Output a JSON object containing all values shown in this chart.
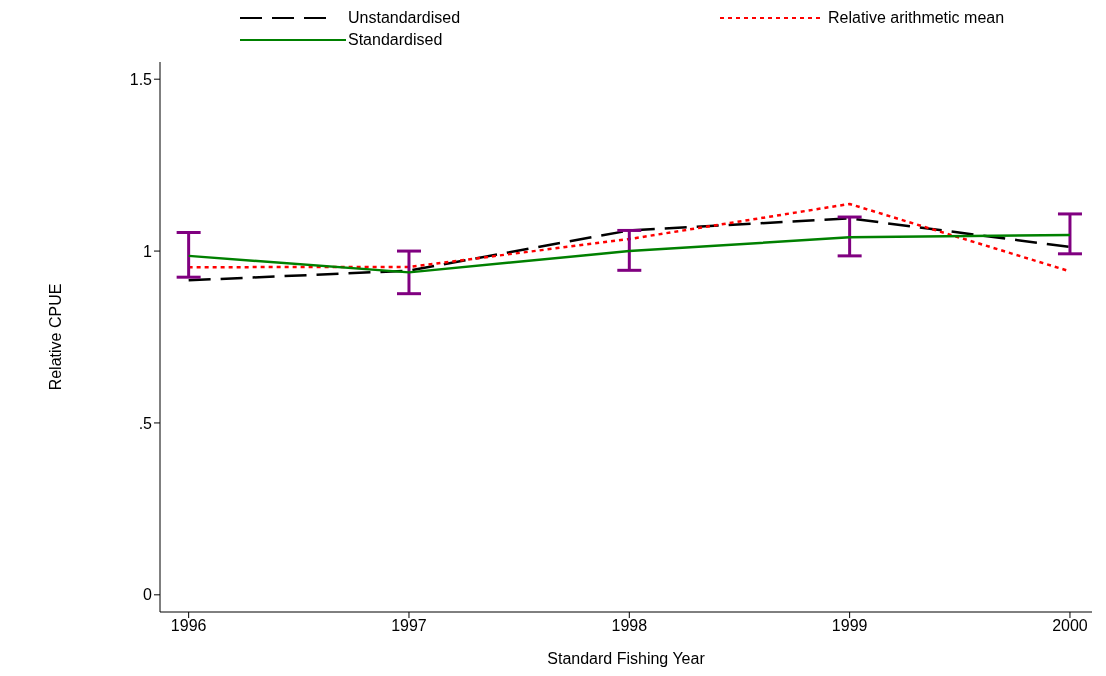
{
  "chart_data": {
    "type": "line",
    "xlabel": "Standard Fishing Year",
    "ylabel": "Relative CPUE",
    "x": [
      1996,
      1997,
      1998,
      1999,
      2000
    ],
    "xlim": [
      1995.87,
      2000.1
    ],
    "xticks": [
      1996,
      1997,
      1998,
      1999,
      2000
    ],
    "ylim": [
      -0.05,
      1.55
    ],
    "yticks": [
      0,
      {
        "value": 0.5,
        "label": ".5"
      },
      1,
      1.5
    ],
    "legend": "top",
    "grid": false,
    "series": [
      {
        "name": "Unstandardised",
        "color": "#000000",
        "line_style": "dashed",
        "values": [
          0.915,
          0.943,
          1.06,
          1.095,
          1.012
        ]
      },
      {
        "name": "Relative arithmetic mean",
        "color": "#ff0000",
        "line_style": "dotted",
        "values": [
          0.953,
          0.954,
          1.035,
          1.137,
          0.941
        ]
      },
      {
        "name": "Standardised",
        "color": "#008000",
        "line_style": "solid",
        "values": [
          0.986,
          0.938,
          1.0,
          1.04,
          1.047
        ],
        "errors": [
          [
            0.924,
            1.054
          ],
          [
            0.876,
            1.0
          ],
          [
            0.944,
            1.06
          ],
          [
            0.986,
            1.099
          ],
          [
            0.992,
            1.108
          ]
        ]
      }
    ]
  }
}
